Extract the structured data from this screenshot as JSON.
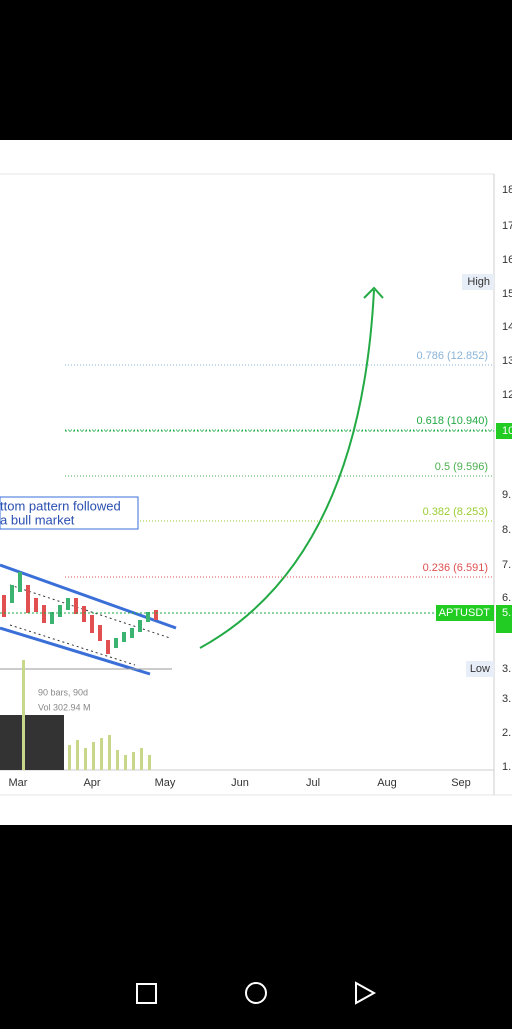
{
  "price_scale": [
    "18",
    "17",
    "16",
    "15",
    "14",
    "13",
    "12",
    "10",
    "9.",
    "8.",
    "7.",
    "6.",
    "5.",
    "3.",
    "3.",
    "2.",
    "1."
  ],
  "fib_levels": [
    "0.786 (12.852)",
    "0.618 (10.940)",
    "0.5 (9.596)",
    "0.382 (8.253)",
    "0.236 (6.591)"
  ],
  "markers": {
    "high": "High",
    "low": "Low",
    "symbol": "APTUSDT"
  },
  "annotation": [
    "ttom pattern followed",
    "a bull market"
  ],
  "range_info": [
    "90 bars, 90d",
    "Vol 302.94 M"
  ],
  "time_axis": [
    "Mar",
    "Apr",
    "May",
    "Jun",
    "Jul",
    "Aug",
    "Sep"
  ]
}
